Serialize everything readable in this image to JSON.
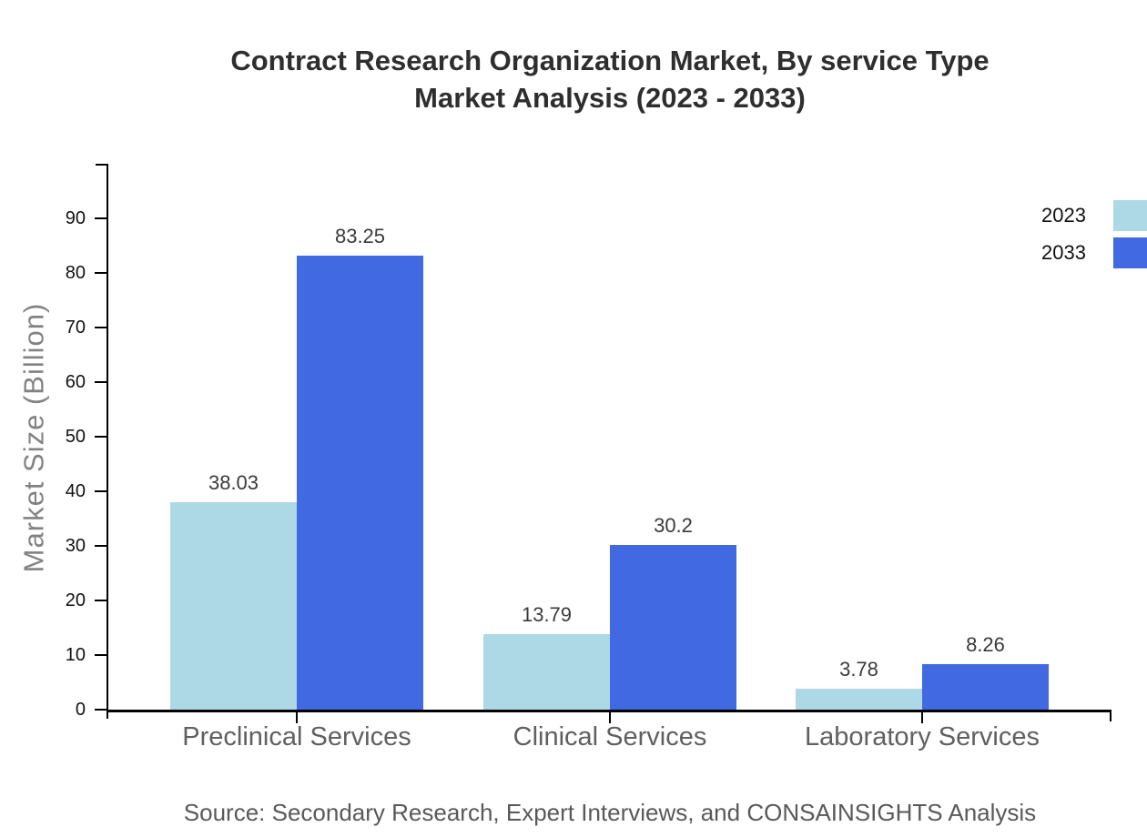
{
  "title": {
    "line1": "Contract Research Organization Market, By service Type",
    "line2": "Market Analysis (2023 - 2033)"
  },
  "source_note": "Source: Secondary Research, Expert Interviews, and CONSAINSIGHTS Analysis",
  "chart_data": {
    "type": "bar",
    "title": "Contract Research Organization Market, By service Type Market Analysis (2023 - 2033)",
    "categories": [
      "Preclinical Services",
      "Clinical Services",
      "Laboratory Services"
    ],
    "series": [
      {
        "name": "2023",
        "color": "#ADD8E6",
        "values": [
          38.03,
          13.79,
          3.78
        ],
        "labels": [
          "38.03",
          "13.79",
          "3.78"
        ]
      },
      {
        "name": "2033",
        "color": "#4169E1",
        "values": [
          83.25,
          30.2,
          8.26
        ],
        "labels": [
          "83.25",
          "30.2",
          "8.26"
        ]
      }
    ],
    "xlabel": "",
    "ylabel": "Market Size (Billion)",
    "ylim": [
      0,
      100
    ],
    "yticks": [
      0,
      10,
      20,
      30,
      40,
      50,
      60,
      70,
      80,
      90
    ],
    "grid": false,
    "legend_position": "top-right",
    "axis_color": "#000000",
    "tick_label_color": "#111111",
    "category_label_color": "#606060",
    "value_label_color": "#3a3a3a",
    "title_color": "#2e2e2e",
    "ylabel_color": "#828282",
    "source_color": "#595959",
    "background_color": "#ffffff"
  }
}
